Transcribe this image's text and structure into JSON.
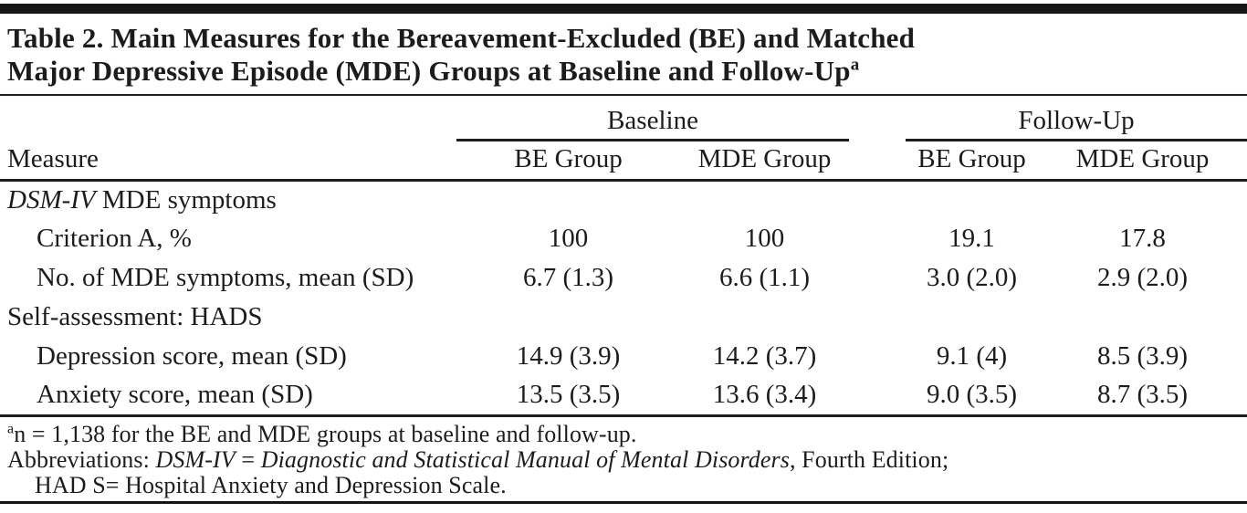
{
  "title": {
    "line1": "Table 2. Main Measures for the Bereavement-Excluded (BE) and Matched",
    "line2": "Major Depressive Episode (MDE) Groups at Baseline and Follow-Up",
    "superscript": "a"
  },
  "header": {
    "measure_label": "Measure",
    "groups": [
      {
        "label": "Baseline",
        "columns": [
          "BE Group",
          "MDE Group"
        ]
      },
      {
        "label": "Follow-Up",
        "columns": [
          "BE Group",
          "MDE Group"
        ]
      }
    ]
  },
  "rows": [
    {
      "kind": "section",
      "label_italic": "DSM-IV",
      "label": " MDE symptoms",
      "values": [
        "",
        "",
        "",
        ""
      ]
    },
    {
      "kind": "item",
      "label": "Criterion A, %",
      "values": [
        "100",
        "100",
        "19.1",
        "17.8"
      ]
    },
    {
      "kind": "item",
      "label": "No. of MDE symptoms, mean (SD)",
      "values": [
        "6.7 (1.3)",
        "6.6 (1.1)",
        "3.0 (2.0)",
        "2.9 (2.0)"
      ]
    },
    {
      "kind": "section",
      "label": "Self-assessment: HADS",
      "values": [
        "",
        "",
        "",
        ""
      ]
    },
    {
      "kind": "item",
      "label": "Depression score, mean (SD)",
      "values": [
        "14.9 (3.9)",
        "14.2 (3.7)",
        "9.1 (4)",
        "8.5 (3.9)"
      ]
    },
    {
      "kind": "item",
      "label": "Anxiety score, mean (SD)",
      "values": [
        "13.5 (3.5)",
        "13.6 (3.4)",
        "9.0 (3.5)",
        "8.7 (3.5)"
      ]
    }
  ],
  "footnotes": {
    "note_a": {
      "marker": "a",
      "text": "n = 1,138 for the BE and MDE groups at baseline and follow-up."
    },
    "abbreviations": {
      "prefix": "Abbreviations: ",
      "dsm_abbr": "DSM-IV",
      "equals": " = ",
      "dsm_full": "Diagnostic and Statistical Manual of Mental Disorders",
      "suffix": ", Fourth Edition;",
      "line2": "HAD S= Hospital Anxiety and Depression Scale."
    }
  },
  "colors": {
    "text": "#1c1c1c",
    "rule": "#161616",
    "background": "#ffffff"
  }
}
